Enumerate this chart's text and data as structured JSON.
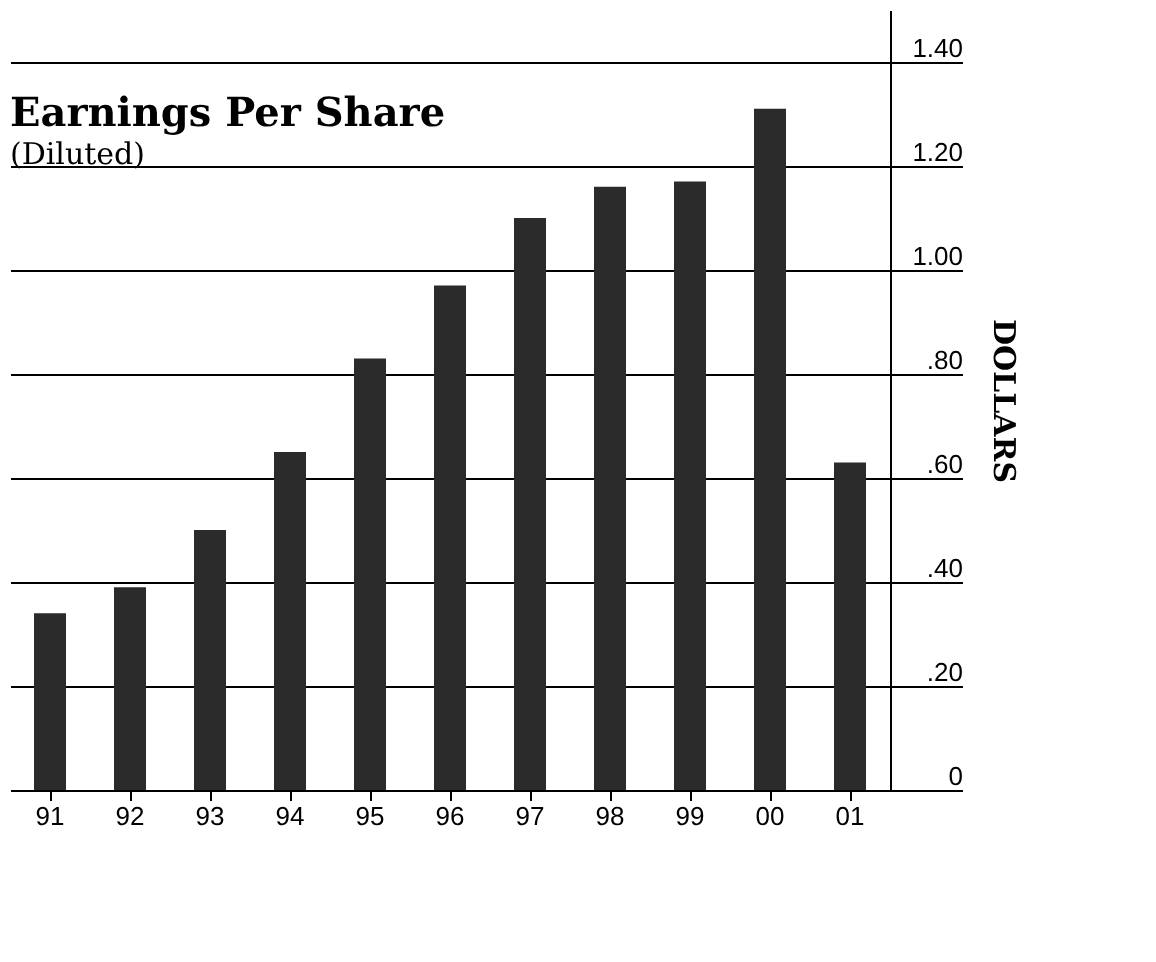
{
  "chart_data": {
    "type": "bar",
    "title": "Earnings Per Share",
    "subtitle": "(Diluted)",
    "ylabel": "DOLLARS",
    "categories": [
      "91",
      "92",
      "93",
      "94",
      "95",
      "96",
      "97",
      "98",
      "99",
      "00",
      "01"
    ],
    "values": [
      0.34,
      0.39,
      0.5,
      0.65,
      0.83,
      0.97,
      1.1,
      1.16,
      1.17,
      1.31,
      0.63
    ],
    "color": "#2b2b2b",
    "ylim": [
      0,
      1.5
    ],
    "yticks": [
      {
        "value": 0,
        "label": "0"
      },
      {
        "value": 0.2,
        "label": ".20"
      },
      {
        "value": 0.4,
        "label": ".40"
      },
      {
        "value": 0.6,
        "label": ".60"
      },
      {
        "value": 0.8,
        "label": ".80"
      },
      {
        "value": 1.0,
        "label": "1.00"
      },
      {
        "value": 1.2,
        "label": "1.20"
      },
      {
        "value": 1.4,
        "label": "1.40"
      }
    ],
    "grid": "y"
  }
}
